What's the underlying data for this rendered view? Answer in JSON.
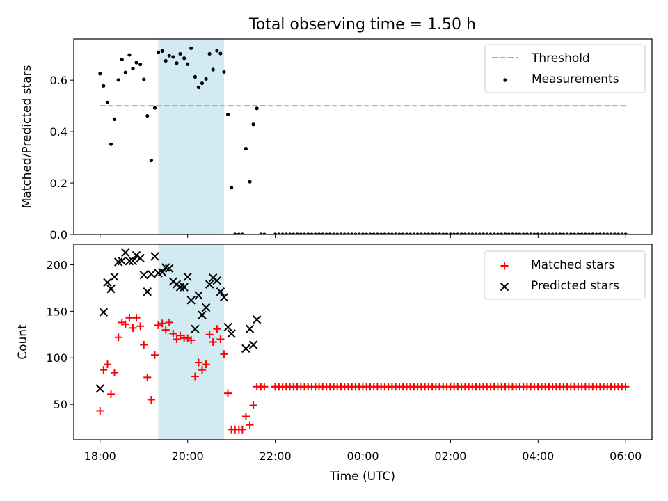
{
  "title": "Total observing time = 1.50 h",
  "xlabel": "Time (UTC)",
  "x_tick_labels": [
    "18:00",
    "20:00",
    "22:00",
    "00:00",
    "02:00",
    "04:00",
    "06:00"
  ],
  "colors": {
    "threshold": "#ff7f7f",
    "measurements": "#000000",
    "matched": "#ff0000",
    "predicted": "#000000",
    "observing_span": "#add8e6"
  },
  "chart_data": [
    {
      "type": "scatter",
      "panel": "top",
      "ylabel": "Matched/Predicted stars",
      "x_unit": "hours after 18:00 UTC",
      "xlim": [
        -0.6,
        12.6
      ],
      "ylim": [
        0,
        0.76
      ],
      "y_ticks": [
        0.0,
        0.2,
        0.4,
        0.6
      ],
      "y_tick_labels": [
        "0.0",
        "0.2",
        "0.4",
        "0.6"
      ],
      "legend_position": "top-right",
      "shaded_span": [
        1.33,
        2.83
      ],
      "threshold": {
        "name": "Threshold",
        "y": 0.5,
        "x_range": [
          0.0,
          12.0
        ],
        "style": "dashed"
      },
      "series": [
        {
          "name": "Measurements",
          "marker": "dot",
          "points": [
            [
              0.0,
              0.625
            ],
            [
              0.08,
              0.578
            ],
            [
              0.17,
              0.513
            ],
            [
              0.25,
              0.351
            ],
            [
              0.33,
              0.448
            ],
            [
              0.42,
              0.601
            ],
            [
              0.5,
              0.68
            ],
            [
              0.58,
              0.63
            ],
            [
              0.67,
              0.698
            ],
            [
              0.75,
              0.645
            ],
            [
              0.83,
              0.668
            ],
            [
              0.92,
              0.661
            ],
            [
              1.0,
              0.603
            ],
            [
              1.08,
              0.461
            ],
            [
              1.17,
              0.288
            ],
            [
              1.25,
              0.492
            ],
            [
              1.33,
              0.708
            ],
            [
              1.42,
              0.713
            ],
            [
              1.5,
              0.675
            ],
            [
              1.58,
              0.695
            ],
            [
              1.67,
              0.69
            ],
            [
              1.75,
              0.666
            ],
            [
              1.83,
              0.702
            ],
            [
              1.92,
              0.685
            ],
            [
              2.0,
              0.662
            ],
            [
              2.08,
              0.724
            ],
            [
              2.17,
              0.613
            ],
            [
              2.25,
              0.572
            ],
            [
              2.33,
              0.588
            ],
            [
              2.42,
              0.605
            ],
            [
              2.5,
              0.702
            ],
            [
              2.58,
              0.641
            ],
            [
              2.67,
              0.714
            ],
            [
              2.75,
              0.703
            ],
            [
              2.83,
              0.632
            ],
            [
              2.92,
              0.467
            ],
            [
              3.0,
              0.182
            ],
            [
              3.08,
              0.0
            ],
            [
              3.17,
              0.0
            ],
            [
              3.25,
              0.0
            ],
            [
              3.33,
              0.334
            ],
            [
              3.42,
              0.205
            ],
            [
              3.5,
              0.428
            ],
            [
              3.58,
              0.49
            ],
            [
              3.67,
              0.0
            ],
            [
              3.75,
              0.0
            ],
            [
              4.0,
              0.0
            ],
            [
              4.25,
              0.0
            ],
            [
              4.5,
              0.0
            ],
            [
              4.75,
              0.0
            ],
            [
              5.0,
              0.0
            ],
            [
              5.25,
              0.0
            ],
            [
              5.5,
              0.0
            ],
            [
              5.75,
              0.0
            ],
            [
              6.0,
              0.0
            ],
            [
              6.25,
              0.0
            ],
            [
              6.5,
              0.0
            ],
            [
              6.75,
              0.0
            ],
            [
              7.0,
              0.0
            ],
            [
              7.25,
              0.0
            ],
            [
              7.5,
              0.0
            ],
            [
              7.75,
              0.0
            ],
            [
              8.0,
              0.0
            ],
            [
              8.25,
              0.0
            ],
            [
              8.5,
              0.0
            ],
            [
              8.75,
              0.0
            ],
            [
              9.0,
              0.0
            ],
            [
              9.25,
              0.0
            ],
            [
              9.5,
              0.0
            ],
            [
              9.75,
              0.0
            ],
            [
              10.0,
              0.0
            ],
            [
              10.25,
              0.0
            ],
            [
              10.5,
              0.0
            ],
            [
              10.75,
              0.0
            ],
            [
              11.0,
              0.0
            ],
            [
              11.25,
              0.0
            ],
            [
              11.5,
              0.0
            ],
            [
              11.75,
              0.0
            ],
            [
              12.0,
              0.0
            ]
          ],
          "fill_interval": {
            "x_from": 4.0,
            "x_to": 12.0,
            "step": 0.0833,
            "y": 0.0
          }
        }
      ]
    },
    {
      "type": "scatter",
      "panel": "bottom",
      "ylabel": "Count",
      "xlabel": "Time (UTC)",
      "x_unit": "hours after 18:00 UTC",
      "xlim": [
        -0.6,
        12.6
      ],
      "ylim": [
        12,
        222
      ],
      "y_ticks": [
        50,
        100,
        150,
        200
      ],
      "y_tick_labels": [
        "50",
        "100",
        "150",
        "200"
      ],
      "legend_position": "top-right",
      "shaded_span": [
        1.33,
        2.83
      ],
      "series": [
        {
          "name": "Matched stars",
          "marker": "plus",
          "points": [
            [
              0.0,
              43
            ],
            [
              0.08,
              87
            ],
            [
              0.17,
              93
            ],
            [
              0.25,
              61
            ],
            [
              0.33,
              84
            ],
            [
              0.42,
              122
            ],
            [
              0.5,
              138
            ],
            [
              0.58,
              136
            ],
            [
              0.67,
              143
            ],
            [
              0.75,
              132
            ],
            [
              0.83,
              143
            ],
            [
              0.92,
              134
            ],
            [
              1.0,
              114
            ],
            [
              1.08,
              79
            ],
            [
              1.17,
              55
            ],
            [
              1.25,
              103
            ],
            [
              1.33,
              135
            ],
            [
              1.42,
              137
            ],
            [
              1.5,
              130
            ],
            [
              1.58,
              138
            ],
            [
              1.67,
              126
            ],
            [
              1.75,
              120
            ],
            [
              1.83,
              124
            ],
            [
              1.92,
              121
            ],
            [
              2.0,
              121
            ],
            [
              2.08,
              119
            ],
            [
              2.17,
              80
            ],
            [
              2.25,
              95
            ],
            [
              2.33,
              87
            ],
            [
              2.42,
              93
            ],
            [
              2.5,
              125
            ],
            [
              2.58,
              117
            ],
            [
              2.67,
              131
            ],
            [
              2.75,
              120
            ],
            [
              2.83,
              104
            ],
            [
              2.92,
              62
            ],
            [
              3.0,
              23
            ],
            [
              3.08,
              23
            ],
            [
              3.17,
              23
            ],
            [
              3.25,
              23
            ],
            [
              3.33,
              37
            ],
            [
              3.42,
              28
            ],
            [
              3.5,
              49
            ],
            [
              3.58,
              69
            ],
            [
              3.67,
              69
            ],
            [
              3.75,
              69
            ],
            [
              4.0,
              69
            ]
          ],
          "fill_interval": {
            "x_from": 4.0,
            "x_to": 12.0,
            "step": 0.0833,
            "y": 69
          }
        },
        {
          "name": "Predicted stars",
          "marker": "x",
          "points": [
            [
              0.0,
              67
            ],
            [
              0.08,
              149
            ],
            [
              0.17,
              181
            ],
            [
              0.25,
              174
            ],
            [
              0.33,
              187
            ],
            [
              0.42,
              203
            ],
            [
              0.5,
              204
            ],
            [
              0.58,
              213
            ],
            [
              0.67,
              204
            ],
            [
              0.75,
              204
            ],
            [
              0.83,
              210
            ],
            [
              0.92,
              207
            ],
            [
              1.0,
              189
            ],
            [
              1.08,
              171
            ],
            [
              1.17,
              190
            ],
            [
              1.25,
              209
            ],
            [
              1.33,
              191
            ],
            [
              1.42,
              192
            ],
            [
              1.5,
              197
            ],
            [
              1.58,
              196
            ],
            [
              1.67,
              182
            ],
            [
              1.75,
              179
            ],
            [
              1.83,
              176
            ],
            [
              1.92,
              176
            ],
            [
              2.0,
              187
            ],
            [
              2.08,
              162
            ],
            [
              2.17,
              131
            ],
            [
              2.25,
              167
            ],
            [
              2.33,
              146
            ],
            [
              2.42,
              154
            ],
            [
              2.5,
              179
            ],
            [
              2.58,
              186
            ],
            [
              2.67,
              183
            ],
            [
              2.75,
              171
            ],
            [
              2.83,
              165
            ],
            [
              2.92,
              133
            ],
            [
              3.0,
              126
            ],
            [
              3.33,
              110
            ],
            [
              3.42,
              131
            ],
            [
              3.5,
              114
            ],
            [
              3.58,
              141
            ]
          ]
        }
      ]
    }
  ]
}
